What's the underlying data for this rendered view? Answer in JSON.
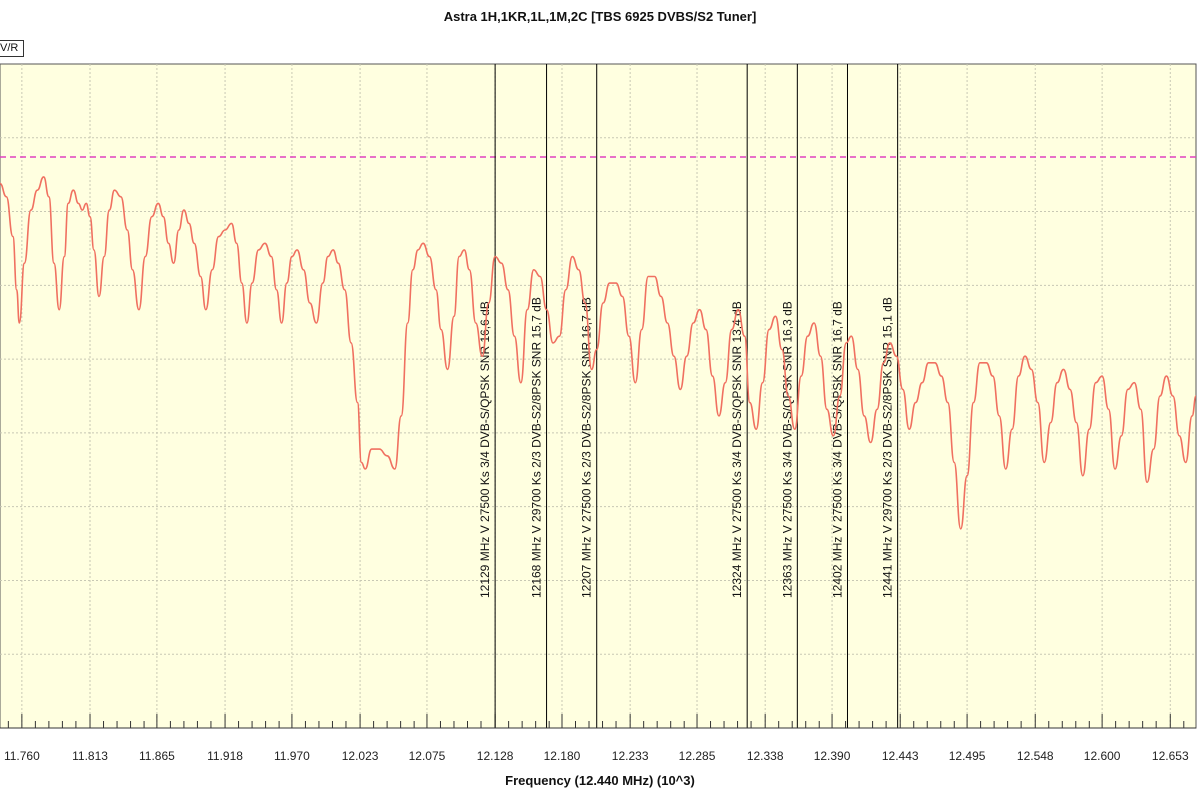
{
  "chart_data": {
    "type": "line",
    "title": "Astra 1H,1KR,1L,1M,2C [TBS 6925 DVBS/S2 Tuner]",
    "legend_label": "V/R",
    "xlabel": "Frequency (12.440 MHz) (10^3)",
    "ylabel": "",
    "xlim": [
      11.743,
      12.673
    ],
    "x_ticks": [
      "11.760",
      "11.813",
      "11.865",
      "11.918",
      "11.970",
      "12.023",
      "12.075",
      "12.128",
      "12.180",
      "12.233",
      "12.285",
      "12.338",
      "12.390",
      "12.443",
      "12.495",
      "12.548",
      "12.600",
      "12.653"
    ],
    "x_tick_values": [
      11.76,
      11.813,
      11.865,
      11.918,
      11.97,
      12.023,
      12.075,
      12.128,
      12.18,
      12.233,
      12.285,
      12.338,
      12.39,
      12.443,
      12.495,
      12.548,
      12.6,
      12.653
    ],
    "ylim": [
      0,
      100
    ],
    "grid": true,
    "colors": {
      "background": "#ffffe0",
      "grid": "#c8c8b4",
      "series": "#f07060",
      "threshold": "#e040c0",
      "marker": "#000000"
    },
    "threshold": 86,
    "series": [
      {
        "name": "V/R",
        "x": [
          11.743,
          11.748,
          11.753,
          11.756,
          11.758,
          11.762,
          11.767,
          11.772,
          11.777,
          11.781,
          11.785,
          11.789,
          11.793,
          11.796,
          11.8,
          11.804,
          11.807,
          11.81,
          11.813,
          11.816,
          11.82,
          11.824,
          11.828,
          11.832,
          11.837,
          11.842,
          11.846,
          11.851,
          11.856,
          11.861,
          11.866,
          11.87,
          11.874,
          11.878,
          11.882,
          11.886,
          11.89,
          11.894,
          11.899,
          11.903,
          11.908,
          11.913,
          11.918,
          11.923,
          11.927,
          11.931,
          11.935,
          11.939,
          11.944,
          11.949,
          11.954,
          11.958,
          11.962,
          11.966,
          11.97,
          11.974,
          11.979,
          11.984,
          11.989,
          11.994,
          11.998,
          12.002,
          12.006,
          12.011,
          12.016,
          12.021,
          12.024,
          12.027,
          12.032,
          12.038,
          12.044,
          12.05,
          12.055,
          12.06,
          12.064,
          12.068,
          12.072,
          12.077,
          12.082,
          12.086,
          12.091,
          12.096,
          12.1,
          12.104,
          12.108,
          12.113,
          12.118,
          12.123,
          12.128,
          12.133,
          12.138,
          12.143,
          12.148,
          12.153,
          12.158,
          12.163,
          12.168,
          12.173,
          12.178,
          12.183,
          12.188,
          12.193,
          12.198,
          12.203,
          12.207,
          12.212,
          12.217,
          12.222,
          12.227,
          12.232,
          12.237,
          12.242,
          12.247,
          12.252,
          12.257,
          12.262,
          12.267,
          12.272,
          12.277,
          12.282,
          12.287,
          12.292,
          12.297,
          12.302,
          12.307,
          12.312,
          12.317,
          12.322,
          12.326,
          12.331,
          12.336,
          12.341,
          12.346,
          12.351,
          12.356,
          12.361,
          12.366,
          12.371,
          12.376,
          12.381,
          12.386,
          12.391,
          12.396,
          12.401,
          12.405,
          12.41,
          12.415,
          12.42,
          12.425,
          12.43,
          12.435,
          12.44,
          12.445,
          12.45,
          12.455,
          12.46,
          12.465,
          12.47,
          12.475,
          12.48,
          12.485,
          12.49,
          12.495,
          12.5,
          12.505,
          12.51,
          12.515,
          12.52,
          12.525,
          12.53,
          12.535,
          12.54,
          12.545,
          12.55,
          12.555,
          12.56,
          12.565,
          12.57,
          12.575,
          12.58,
          12.585,
          12.59,
          12.595,
          12.6,
          12.605,
          12.61,
          12.615,
          12.62,
          12.625,
          12.63,
          12.635,
          12.64,
          12.645,
          12.65,
          12.655,
          12.66,
          12.665,
          12.67,
          12.673
        ],
        "values": [
          82,
          80,
          74,
          66,
          61,
          70,
          78,
          81,
          83,
          80,
          70,
          63,
          71,
          79,
          81,
          79,
          78,
          79,
          77,
          72,
          65,
          71,
          78,
          81,
          80,
          75,
          69,
          63,
          71,
          77,
          79,
          77,
          73,
          70,
          75,
          78,
          76,
          73,
          68,
          63,
          69,
          74,
          75,
          76,
          73,
          67,
          61,
          67,
          72,
          73,
          71,
          66,
          61,
          67,
          71,
          72,
          69,
          64,
          61,
          67,
          71,
          72,
          70,
          66,
          58,
          49,
          40,
          39,
          42,
          42,
          41,
          39,
          47,
          61,
          69,
          72,
          73,
          71,
          66,
          60,
          54,
          62,
          71,
          72,
          69,
          61,
          56,
          64,
          71,
          70,
          66,
          59,
          52,
          63,
          69,
          68,
          63,
          58,
          59,
          66,
          71,
          69,
          64,
          54,
          57,
          64,
          67,
          67,
          65,
          59,
          52,
          60,
          68,
          68,
          65,
          61,
          56,
          51,
          56,
          61,
          63,
          60,
          53,
          47,
          52,
          60,
          63,
          59,
          49,
          45,
          52,
          60,
          62,
          57,
          50,
          45,
          53,
          59,
          61,
          56,
          48,
          44,
          50,
          58,
          59,
          54,
          47,
          43,
          48,
          55,
          58,
          56,
          51,
          45,
          49,
          52,
          55,
          55,
          53,
          49,
          40,
          30,
          38,
          49,
          55,
          55,
          53,
          47,
          39,
          45,
          53,
          56,
          54,
          49,
          40,
          46,
          52,
          54,
          51,
          46,
          38,
          45,
          52,
          53,
          48,
          39,
          44,
          51,
          52,
          48,
          37,
          42,
          50,
          53,
          50,
          44,
          40,
          47,
          50
        ]
      }
    ],
    "markers": [
      {
        "x": 12.128,
        "label": "12129 MHz V 27500 Ks 3/4 DVB-S/QPSK SNR 16,6 dB"
      },
      {
        "x": 12.168,
        "label": "12168 MHz V 29700 Ks 2/3 DVB-S2/8PSK SNR 15,7 dB"
      },
      {
        "x": 12.207,
        "label": "12207 MHz V 27500 Ks 2/3 DVB-S2/8PSK SNR 16,7 dB"
      },
      {
        "x": 12.324,
        "label": "12324 MHz V 27500 Ks 3/4 DVB-S/QPSK SNR 13,4 dB"
      },
      {
        "x": 12.363,
        "label": "12363 MHz V 27500 Ks 3/4 DVB-S/QPSK SNR 16,3 dB"
      },
      {
        "x": 12.402,
        "label": "12402 MHz V 27500 Ks 3/4 DVB-S/QPSK SNR 16,7 dB"
      },
      {
        "x": 12.441,
        "label": "12441 MHz V 29700 Ks 2/3 DVB-S2/8PSK SNR 15,1 dB"
      }
    ]
  }
}
